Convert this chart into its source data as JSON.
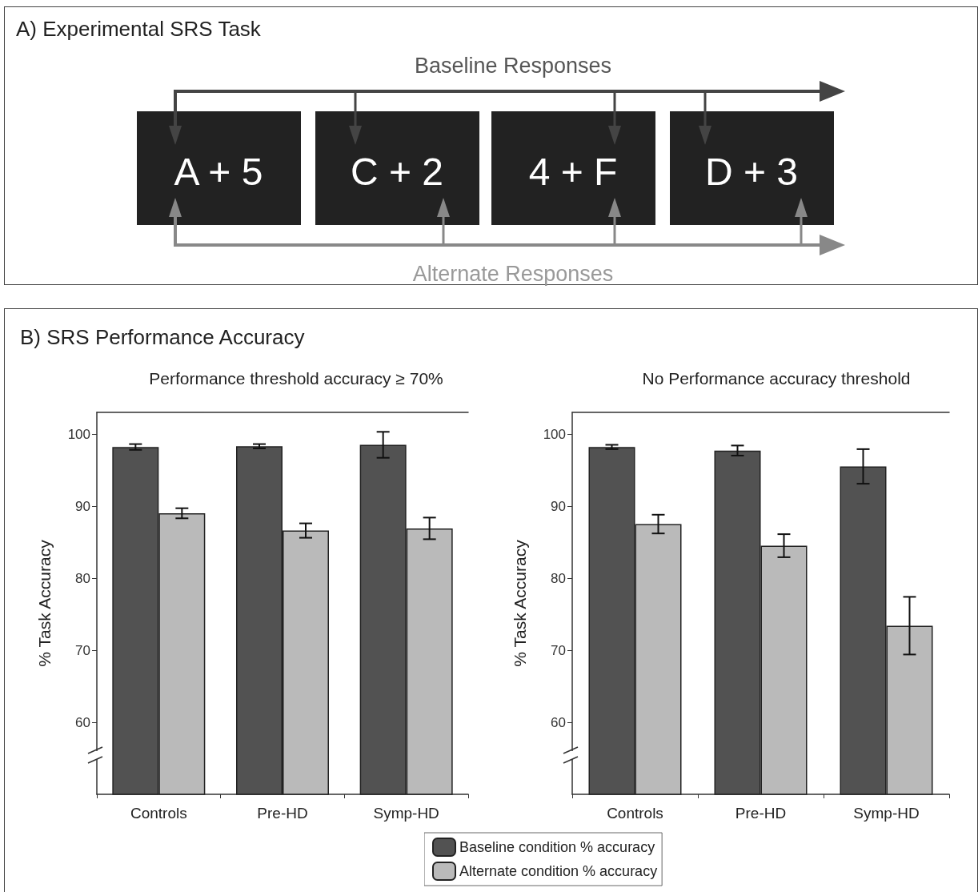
{
  "chart_data": [
    {
      "type": "other",
      "title": "A) Experimental SRS Task",
      "annotations": [
        "Baseline Responses",
        "A + 5",
        "C + 2",
        "4 + F",
        "D + 3",
        "Alternate Responses"
      ]
    },
    {
      "type": "bar",
      "title": "B) SRS Performance Accuracy",
      "subtitle": "Performance threshold accuracy ≥ 70%",
      "ylabel": "% Task Accuracy",
      "categories": [
        "Controls",
        "Pre-HD",
        "Symp-HD"
      ],
      "ylim": [
        50,
        103
      ],
      "yticks": [
        60,
        70,
        80,
        90,
        100
      ],
      "grid": false,
      "series": [
        {
          "color": "#525252",
          "values": [
            98.2,
            98.3,
            98.5
          ],
          "errors": [
            0.4,
            0.3,
            1.8
          ]
        },
        {
          "color": "#bababa",
          "values": [
            89.0,
            86.6,
            86.9
          ],
          "errors": [
            0.7,
            1.0,
            1.5
          ]
        }
      ]
    },
    {
      "type": "bar",
      "subtitle": "No Performance accuracy threshold",
      "ylabel": "% Task Accuracy",
      "categories": [
        "Controls",
        "Pre-HD",
        "Symp-HD"
      ],
      "ylim": [
        50,
        103
      ],
      "yticks": [
        60,
        70,
        80,
        90,
        100
      ],
      "grid": false,
      "legend": "bottom",
      "series": [
        {
          "name": "Baseline condition % accuracy",
          "color": "#525252",
          "values": [
            98.2,
            97.7,
            95.5
          ],
          "errors": [
            0.3,
            0.7,
            2.4
          ]
        },
        {
          "name": "Alternate condition % accuracy",
          "color": "#bababa",
          "values": [
            87.5,
            84.5,
            73.4
          ],
          "errors": [
            1.3,
            1.6,
            4.0
          ]
        }
      ]
    }
  ]
}
